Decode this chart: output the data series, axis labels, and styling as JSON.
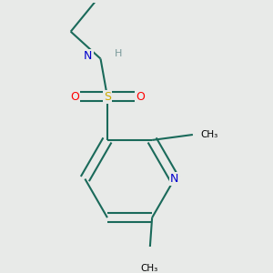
{
  "background_color": "#e8eae8",
  "atom_colors": {
    "C": "#000000",
    "N": "#0000cd",
    "O": "#ff0000",
    "S": "#ccaa00",
    "H": "#7a9a9a"
  },
  "bond_color": "#1a6a5a",
  "bond_width": 1.5,
  "figsize": [
    3.0,
    3.0
  ],
  "dpi": 100
}
